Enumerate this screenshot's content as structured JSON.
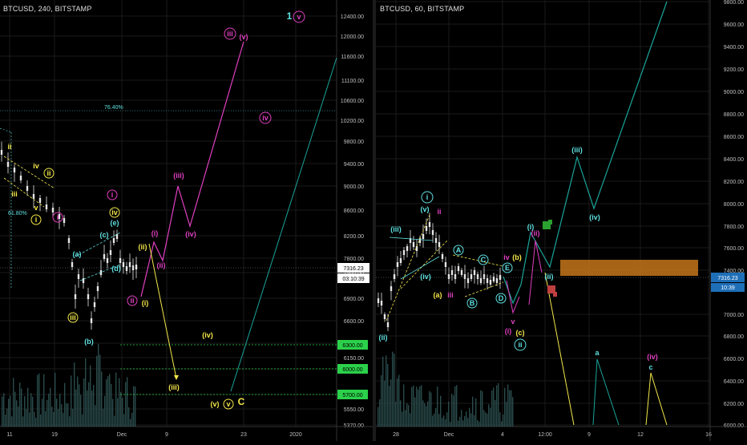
{
  "charts": [
    {
      "symbol": "BTCUSD, 240, BITSTAMP",
      "price_tag": "7316.23",
      "countdown_tag": "03:10:39",
      "y_ticks": [
        "12400.00",
        "12000.00",
        "11600.00",
        "11100.00",
        "10600.00",
        "10200.00",
        "9800.00",
        "9400.00",
        "9000.00",
        "8600.00",
        "8200.00",
        "7800.00",
        "7500.00",
        "6900.00",
        "6600.00",
        "6300.00",
        "6150.00",
        "6000.00",
        "5700.00",
        "5550.00",
        "5370.00"
      ],
      "x_ticks": [
        "11",
        "19",
        "Dec",
        "9",
        "23",
        "2020"
      ],
      "level_tags": [
        "6300.00",
        "6000.00",
        "5700.00"
      ],
      "fib_labels": [
        "76.40%",
        "61.80%"
      ],
      "wave_labels": {
        "top_count": "1",
        "top_v": "v",
        "ii": "ii",
        "iii": "iii",
        "iv": "iv",
        "v": "v",
        "ii_circ": "ii",
        "i_circ": "i",
        "a": "(a)",
        "b": "(b)",
        "c": "(c)",
        "d": "(d)",
        "e": "(e)",
        "iv_circ": "iv",
        "iii_low": "iii",
        "proj_i_pink": "(i)",
        "proj_ii_pink": "(ii)",
        "proj_iii_pink": "(iii)",
        "proj_iv_pink": "(iv)",
        "proj_iii_big": "iii",
        "proj_v_pink": "(v)",
        "proj_iv_big": "iv",
        "ii_pink_circ": "ii",
        "i_yel": "(i)",
        "ii_yel": "(ii)",
        "iii_yel": "(iii)",
        "iv_yel": "(iv)",
        "v_yel": "(v)",
        "v_circ": "v",
        "C": "C"
      }
    },
    {
      "symbol": "BTCUSD, 60, BITSTAMP",
      "price_tag": "7316.23",
      "countdown_tag": "10:39",
      "y_ticks": [
        "9800.00",
        "9600.00",
        "9400.00",
        "9200.00",
        "9000.00",
        "8800.00",
        "8600.00",
        "8400.00",
        "8200.00",
        "8000.00",
        "7800.00",
        "7600.00",
        "7400.00",
        "7000.00",
        "6800.00",
        "6600.00",
        "6400.00",
        "6200.00",
        "6000.00"
      ],
      "x_ticks": [
        "28",
        "Dec",
        "4",
        "12:00",
        "9",
        "12",
        "16"
      ],
      "wave_labels": {
        "i_circ": "i",
        "v": "(v)",
        "iii": "(iii)",
        "iv": "(iv)",
        "ii_low": "(ii)",
        "ii_pink": "ii",
        "A": "A",
        "B": "B",
        "C": "C",
        "D": "D",
        "E": "E",
        "a_yel": "(a)",
        "iii_pink": "iii",
        "iv_pink": "iv",
        "b_yel": "(b)",
        "v_pink": "v",
        "i_pink": "(i)",
        "c_yel": "(c)",
        "ii_circ": "ii",
        "ii_pink2": "(ii)",
        "i_cyan": "(i)",
        "ii_cyan": "(ii)",
        "iii_cyan": "(iii)",
        "iv_cyan": "(iv)",
        "a": "a",
        "c": "c",
        "iv_pink_paren": "(iv)"
      }
    }
  ],
  "chart_data": [
    {
      "type": "candlestick",
      "title": "BTCUSD, 240, BITSTAMP",
      "x_ticks": [
        "11",
        "19",
        "Dec",
        "9",
        "23",
        "2020"
      ],
      "ylim": [
        5300,
        12600
      ],
      "last_price": 7316.23,
      "levels": [
        6300,
        6000,
        5700
      ],
      "fib_levels": {
        "76.40%": 9980,
        "61.80%": 8180
      },
      "projection_path": [
        7000,
        7700,
        7250,
        8660,
        7930,
        11400
      ],
      "bearish_path": [
        7700,
        5800
      ]
    },
    {
      "type": "candlestick",
      "title": "BTCUSD, 60, BITSTAMP",
      "x_ticks": [
        "28",
        "Dec",
        "4",
        "12:00",
        "9",
        "12",
        "16"
      ],
      "ylim": [
        5980,
        9850
      ],
      "last_price": 7316.23,
      "zone": [
        7340,
        7480
      ],
      "bullish_path": [
        7280,
        7720,
        7350,
        8420,
        7920,
        9880
      ],
      "bearish_path": [
        7700,
        6000
      ]
    }
  ],
  "colors": {
    "bg": "#000000",
    "grid": "#1a1a1a",
    "axis_text": "#bfbfbf",
    "yellow": "#f5e84a",
    "cyan": "#5fe0e0",
    "magenta": "#e040c0",
    "teal": "#1aa59a",
    "green_tag": "#2bd14a",
    "orange_zone": "#c4761a",
    "candle": "#e6e6e6",
    "volume": "#2a4a4a"
  }
}
